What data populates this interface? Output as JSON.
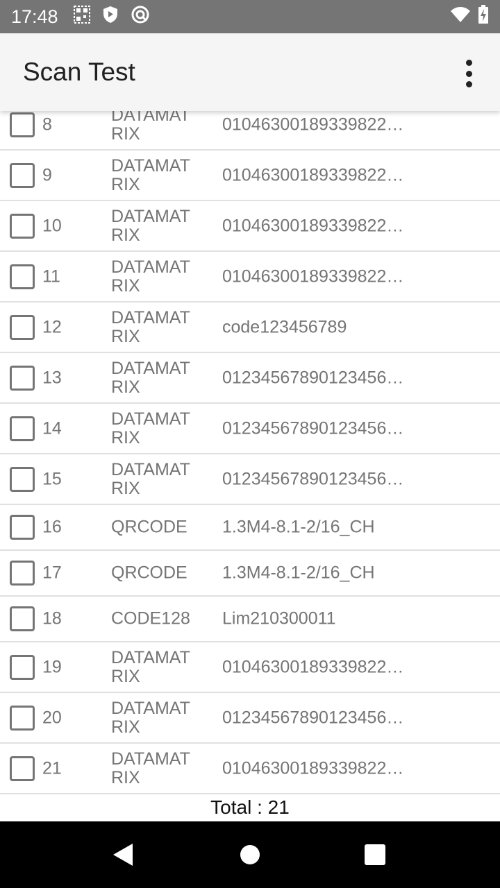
{
  "status_bar": {
    "time": "17:48",
    "icons": [
      "qr-code-icon",
      "shield-play-icon",
      "at-sign-icon",
      "wifi-icon",
      "battery-charging-icon"
    ]
  },
  "app_bar": {
    "title": "Scan Test",
    "menu_icon": "more-vert-icon"
  },
  "rows": [
    {
      "num": "8",
      "type": "DATAMAT RIX",
      "value": "01046300189339822…",
      "checked": false
    },
    {
      "num": "9",
      "type": "DATAMAT RIX",
      "value": "01046300189339822…",
      "checked": false
    },
    {
      "num": "10",
      "type": "DATAMAT RIX",
      "value": "01046300189339822…",
      "checked": false
    },
    {
      "num": "11",
      "type": "DATAMAT RIX",
      "value": "01046300189339822…",
      "checked": false
    },
    {
      "num": "12",
      "type": "DATAMAT RIX",
      "value": "code123456789",
      "checked": false
    },
    {
      "num": "13",
      "type": "DATAMAT RIX",
      "value": "01234567890123456…",
      "checked": false
    },
    {
      "num": "14",
      "type": "DATAMAT RIX",
      "value": "01234567890123456…",
      "checked": false
    },
    {
      "num": "15",
      "type": "DATAMAT RIX",
      "value": "01234567890123456…",
      "checked": false
    },
    {
      "num": "16",
      "type": "QRCODE",
      "value": "1.3M4-8.1-2/16_CH",
      "checked": false
    },
    {
      "num": "17",
      "type": "QRCODE",
      "value": "1.3M4-8.1-2/16_CH",
      "checked": false
    },
    {
      "num": "18",
      "type": "CODE128",
      "value": "Lim210300011",
      "checked": false
    },
    {
      "num": "19",
      "type": "DATAMAT RIX",
      "value": "01046300189339822…",
      "checked": false
    },
    {
      "num": "20",
      "type": "DATAMAT RIX",
      "value": "01234567890123456…",
      "checked": false
    },
    {
      "num": "21",
      "type": "DATAMAT RIX",
      "value": "01046300189339822…",
      "checked": false
    }
  ],
  "total": "Total : 21"
}
